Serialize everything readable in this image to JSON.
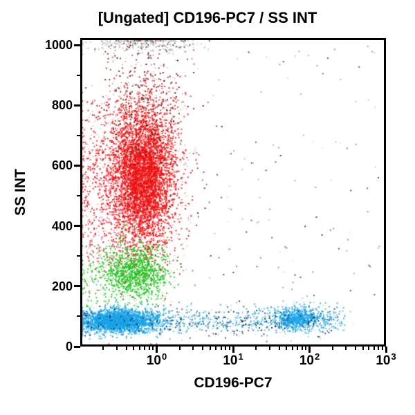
{
  "chart_data": {
    "type": "scatter",
    "title": "[Ungated] CD196-PC7 / SS INT",
    "xlabel": "CD196-PC7",
    "ylabel": "SS INT",
    "grid": false,
    "legend": false,
    "background_color": "#ffffff",
    "axis_color": "#000000",
    "x_axis": {
      "scale": "log10",
      "min": 0.1,
      "max": 1000,
      "major_ticks": [
        {
          "value": 1,
          "base": "10",
          "exp": "0"
        },
        {
          "value": 10,
          "base": "10",
          "exp": "1"
        },
        {
          "value": 100,
          "base": "10",
          "exp": "2"
        },
        {
          "value": 1000,
          "base": "10",
          "exp": "3"
        }
      ]
    },
    "y_axis": {
      "scale": "linear",
      "min": 0,
      "max": 1023,
      "major_ticks": [
        {
          "value": 0,
          "label": "0"
        },
        {
          "value": 200,
          "label": "200"
        },
        {
          "value": 400,
          "label": "400"
        },
        {
          "value": 600,
          "label": "600"
        },
        {
          "value": 800,
          "label": "800"
        },
        {
          "value": 1000,
          "label": "1000"
        }
      ],
      "minor_tick_values": [
        100,
        300,
        500,
        700,
        900
      ]
    },
    "seed": 1337,
    "populations": [
      {
        "name": "red-halo",
        "color": "#e81010",
        "n": 1000,
        "x": {
          "type": "lognormal10",
          "mu": -0.18,
          "sigma": 0.3
        },
        "y": {
          "type": "normal",
          "mu": 580,
          "sigma": 175
        }
      },
      {
        "name": "red-core",
        "color": "#ee0f0f",
        "n": 5200,
        "x": {
          "type": "lognormal10",
          "mu": -0.18,
          "sigma": 0.2
        },
        "y": {
          "type": "normal",
          "mu": 560,
          "sigma": 112
        }
      },
      {
        "name": "red-left-wing",
        "color": "#e81010",
        "n": 500,
        "x": {
          "type": "uniform_log",
          "min": 0.1,
          "max": 0.4
        },
        "y": {
          "type": "normal",
          "mu": 540,
          "sigma": 150
        }
      },
      {
        "name": "red-dark-specks",
        "color": "#5f1212",
        "n": 300,
        "x": {
          "type": "lognormal10",
          "mu": -0.16,
          "sigma": 0.27
        },
        "y": {
          "type": "normal",
          "mu": 810,
          "sigma": 105
        }
      },
      {
        "name": "saturated-top-gray",
        "color": "#b5b5b5",
        "n": 230,
        "x": {
          "type": "lognormal10",
          "mu": -0.2,
          "sigma": 0.38
        },
        "y": {
          "type": "normal",
          "mu": 1002,
          "sigma": 15
        }
      },
      {
        "name": "saturated-top-dark",
        "color": "#4a4a4a",
        "n": 60,
        "x": {
          "type": "lognormal10",
          "mu": -0.15,
          "sigma": 0.4
        },
        "y": {
          "type": "normal",
          "mu": 1000,
          "sigma": 18
        }
      },
      {
        "name": "green-core",
        "color": "#16c316",
        "n": 1250,
        "x": {
          "type": "lognormal10",
          "mu": -0.27,
          "sigma": 0.21
        },
        "y": {
          "type": "normal",
          "mu": 245,
          "sigma": 46
        }
      },
      {
        "name": "green-left-wing",
        "color": "#16c316",
        "n": 130,
        "x": {
          "type": "uniform_log",
          "min": 0.1,
          "max": 0.35
        },
        "y": {
          "type": "normal",
          "mu": 240,
          "sigma": 55
        }
      },
      {
        "name": "pink-sparse",
        "color": "#ef6fb2",
        "n": 110,
        "x": {
          "type": "lognormal10",
          "mu": -0.55,
          "sigma": 0.28
        },
        "y": {
          "type": "uniform",
          "min": 270,
          "max": 570
        }
      },
      {
        "name": "blue-left-blob",
        "color": "#17a3e8",
        "n": 2700,
        "x": {
          "type": "lognormal10",
          "mu": -0.5,
          "sigma": 0.27
        },
        "y": {
          "type": "normal",
          "mu": 84,
          "sigma": 20
        }
      },
      {
        "name": "blue-mid-band",
        "color": "#2fa9e2",
        "n": 520,
        "x": {
          "type": "uniform_log",
          "min": 0.6,
          "max": 300
        },
        "y": {
          "type": "normal",
          "mu": 88,
          "sigma": 22
        }
      },
      {
        "name": "blue-right-blob",
        "color": "#17a3e8",
        "n": 780,
        "x": {
          "type": "lognormal10",
          "mu": 1.86,
          "sigma": 0.17
        },
        "y": {
          "type": "normal",
          "mu": 92,
          "sigma": 19
        }
      },
      {
        "name": "navy-specks",
        "color": "#1d3a66",
        "n": 300,
        "x": {
          "type": "uniform_log",
          "min": 0.1,
          "max": 250
        },
        "y": {
          "type": "normal",
          "mu": 82,
          "sigma": 24
        }
      },
      {
        "name": "dust-gray",
        "color": "#9a9a9a",
        "n": 90,
        "x": {
          "type": "uniform_log",
          "min": 0.1,
          "max": 900
        },
        "y": {
          "type": "uniform",
          "min": 30,
          "max": 1010
        }
      },
      {
        "name": "stray-dark",
        "color": "#3c3c3c",
        "n": 70,
        "x": {
          "type": "uniform_log",
          "min": 1.5,
          "max": 800
        },
        "y": {
          "type": "uniform",
          "min": 120,
          "max": 980
        }
      },
      {
        "name": "stray-green",
        "color": "#2dc42d",
        "n": 16,
        "x": {
          "type": "uniform_log",
          "min": 1,
          "max": 400
        },
        "y": {
          "type": "uniform",
          "min": 40,
          "max": 460
        }
      },
      {
        "name": "stray-red",
        "color": "#e03030",
        "n": 14,
        "x": {
          "type": "uniform_log",
          "min": 2,
          "max": 300
        },
        "y": {
          "type": "uniform",
          "min": 60,
          "max": 500
        }
      }
    ]
  }
}
